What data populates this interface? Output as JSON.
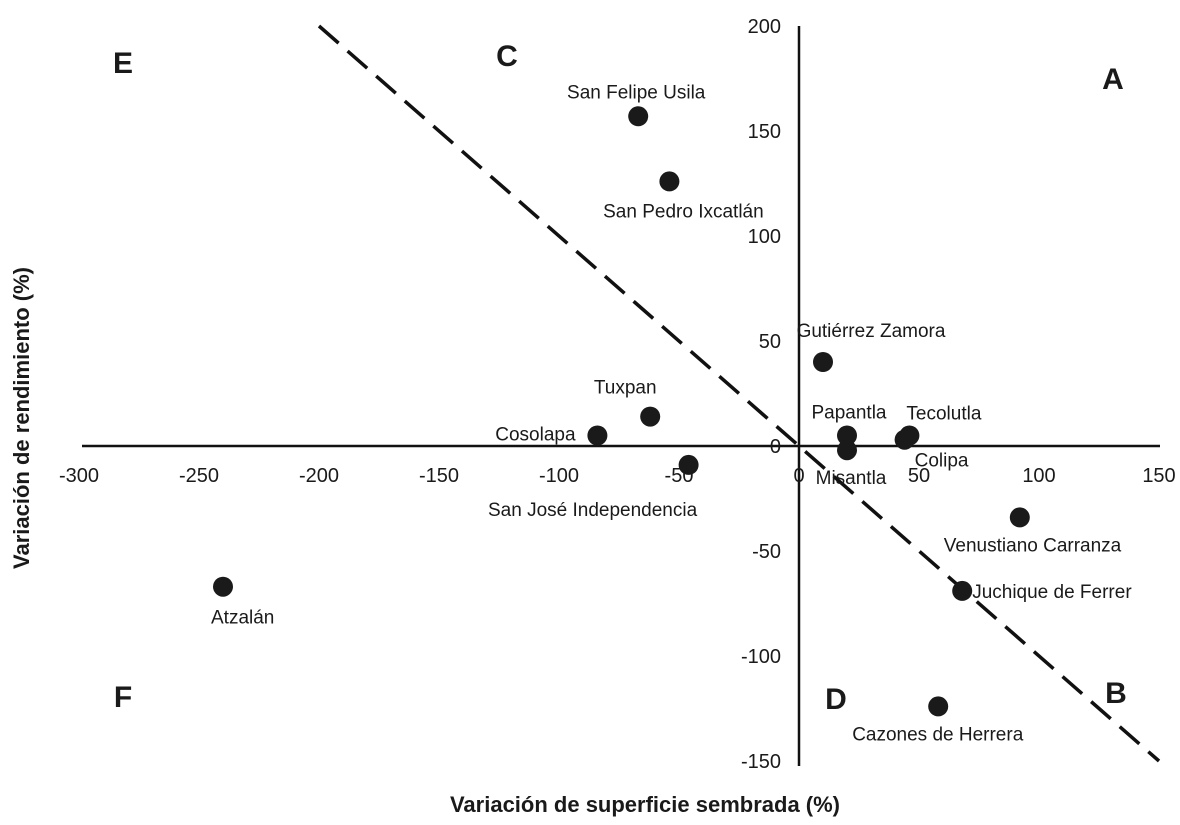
{
  "chart_data": {
    "type": "scatter",
    "xlabel": "Variación de superficie sembrada (%)",
    "ylabel": "Variación de rendimiento (%)",
    "xlim": [
      -300,
      150
    ],
    "ylim": [
      -150,
      200
    ],
    "x_ticks": [
      -300,
      -250,
      -200,
      -150,
      -100,
      -50,
      0,
      50,
      100,
      150
    ],
    "y_ticks": [
      -150,
      -100,
      -50,
      0,
      50,
      100,
      150,
      200
    ],
    "x_tick_labels": [
      "-300",
      "-250",
      "-200",
      "-150",
      "-100",
      "-50",
      "0",
      "50",
      "100",
      "150"
    ],
    "y_tick_labels": [
      "-150",
      "-100",
      "-50",
      "0",
      "50",
      "100",
      "150",
      "200"
    ],
    "grid": false,
    "legend": "none",
    "marker_color": "#1a1a1a",
    "points": [
      {
        "label": "San Felipe Usila",
        "x": -67,
        "y": 157
      },
      {
        "label": "San Pedro Ixcatlán",
        "x": -54,
        "y": 126
      },
      {
        "label": "Gutiérrez Zamora",
        "x": 10,
        "y": 40
      },
      {
        "label": "Tuxpan",
        "x": -62,
        "y": 14
      },
      {
        "label": "Cosolapa",
        "x": -84,
        "y": 5
      },
      {
        "label": "San José Independencia",
        "x": -46,
        "y": -9
      },
      {
        "label": "Papantla",
        "x": 20,
        "y": 5
      },
      {
        "label": "Misantla",
        "x": 20,
        "y": -2
      },
      {
        "label": "Colipa",
        "x": 44,
        "y": 3
      },
      {
        "label": "Tecolutla",
        "x": 46,
        "y": 5
      },
      {
        "label": "Venustiano Carranza",
        "x": 92,
        "y": -34
      },
      {
        "label": "Juchique de Ferrer",
        "x": 68,
        "y": -69
      },
      {
        "label": "Cazones de Herrera",
        "x": 58,
        "y": -124
      },
      {
        "label": "Atzalán",
        "x": -240,
        "y": -67
      }
    ],
    "reference_line": {
      "style": "dashed",
      "from": {
        "x": -200,
        "y": 200
      },
      "to": {
        "x": 150,
        "y": -150
      }
    },
    "quadrant_labels": [
      "A",
      "B",
      "C",
      "D",
      "E",
      "F"
    ]
  }
}
